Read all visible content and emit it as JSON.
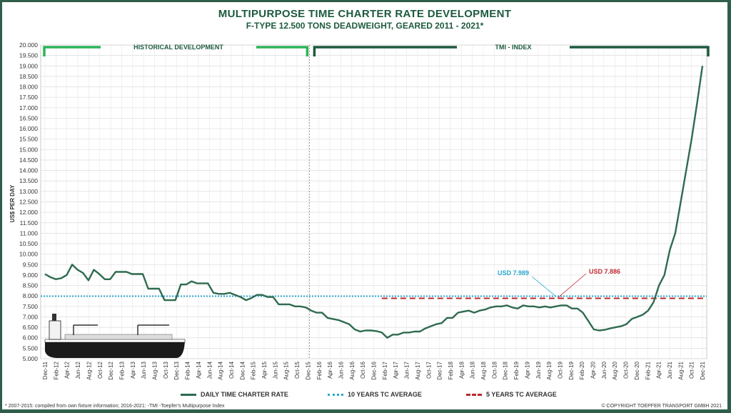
{
  "chart_data": {
    "type": "line",
    "title": "MULTIPURPOSE TIME CHARTER RATE DEVELOPMENT",
    "subtitle": "F-TYPE 12.500 TONS DEADWEIGHT, GEARED 2011 - 2021*",
    "ylabel": "US$ PER DAY",
    "ylim": [
      5000,
      20000
    ],
    "yticks": [
      "5.000",
      "5.500",
      "6.000",
      "6.500",
      "7.000",
      "7.500",
      "8.000",
      "8.500",
      "9.000",
      "9.500",
      "10.000",
      "10.500",
      "11.000",
      "11.500",
      "12.000",
      "12.500",
      "13.000",
      "13.500",
      "14.000",
      "14.500",
      "15.000",
      "15.500",
      "16.000",
      "16.500",
      "17.000",
      "17.500",
      "18.000",
      "18.500",
      "19.000",
      "19.500",
      "20.000"
    ],
    "xticks": [
      "Dec-11",
      "Feb-12",
      "Apr-12",
      "Jun-12",
      "Aug-12",
      "Oct-12",
      "Dec-12",
      "Feb-13",
      "Apr-13",
      "Jun-13",
      "Aug-13",
      "Oct-13",
      "Dec-13",
      "Feb-14",
      "Apr-14",
      "Jun-14",
      "Aug-14",
      "Oct-14",
      "Dec-14",
      "Feb-15",
      "Apr-15",
      "Jun-15",
      "Aug-15",
      "Oct-15",
      "Dec-15",
      "Feb-16",
      "Apr-16",
      "Jun-16",
      "Aug-16",
      "Oct-16",
      "Dec-16",
      "Feb-17",
      "Apr-17",
      "Jun-17",
      "Aug-17",
      "Oct-17",
      "Dec-17",
      "Feb-18",
      "Apr-18",
      "Jun-18",
      "Aug-18",
      "Oct-18",
      "Dec-18",
      "Feb-19",
      "Apr-19",
      "Jun-19",
      "Aug-19",
      "Oct-19",
      "Dec-19",
      "Feb-20",
      "Apr-20",
      "Jun-20",
      "Aug-20",
      "Oct-20",
      "Dec-20",
      "Feb-21",
      "Apr-21",
      "Jun-21",
      "Aug-21",
      "Oct-21",
      "Dec-21"
    ],
    "series": [
      {
        "name": "DAILY TIME CHARTER RATE",
        "color": "#2f6b4f",
        "values": [
          9050,
          8900,
          8800,
          8850,
          9000,
          9500,
          9250,
          9100,
          8750,
          9250,
          9050,
          8800,
          8800,
          9150,
          9150,
          9150,
          9050,
          9050,
          9050,
          8350,
          8350,
          8350,
          7800,
          7800,
          7800,
          8550,
          8550,
          8700,
          8600,
          8600,
          8600,
          8150,
          8100,
          8100,
          8150,
          8050,
          7950,
          7800,
          7900,
          8050,
          8050,
          7950,
          7950,
          7600,
          7600,
          7600,
          7500,
          7500,
          7450,
          7300,
          7200,
          7200,
          6950,
          6900,
          6850,
          6750,
          6650,
          6400,
          6300,
          6350,
          6350,
          6320,
          6250,
          6000,
          6150,
          6150,
          6250,
          6250,
          6300,
          6300,
          6450,
          6550,
          6650,
          6700,
          6950,
          6950,
          7200,
          7250,
          7300,
          7200,
          7300,
          7350,
          7450,
          7500,
          7500,
          7550,
          7450,
          7400,
          7550,
          7500,
          7500,
          7450,
          7500,
          7450,
          7500,
          7550,
          7550,
          7400,
          7400,
          7200,
          6800,
          6400,
          6350,
          6380,
          6450,
          6500,
          6550,
          6650,
          6900,
          7000,
          7100,
          7300,
          7700,
          8500,
          9000,
          10200,
          11000,
          12500,
          14000,
          15500,
          17200,
          19000
        ]
      },
      {
        "name": "10 YEARS TC AVERAGE",
        "color": "#2aa7cf",
        "value": 7989,
        "label": "USD 7.989"
      },
      {
        "name": "5 YEARS TC AVERAGE",
        "color": "#c0282f",
        "value": 7886,
        "label": "USD 7.886"
      }
    ],
    "sections": [
      {
        "label": "HISTORICAL DEVELOPMENT",
        "color": "#2fb35a"
      },
      {
        "label": "TMI - INDEX",
        "color": "#1d5a3e"
      }
    ],
    "grid": true,
    "legend_position": "bottom"
  },
  "footnote": "* 2007-2015: compiled from own fixture information; 2016-2021: -TMI -Toepfer's Multipurpose Index",
  "copyright": "© COPYRIGHT TOEPFER TRANSPORT GMBH 2021"
}
